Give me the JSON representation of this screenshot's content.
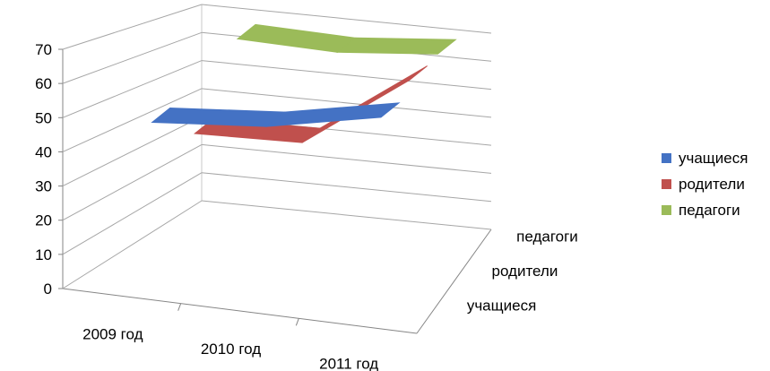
{
  "chart_data": {
    "type": "line",
    "subtype": "3d-line",
    "categories": [
      "2009 год",
      "2010 год",
      "2011 год"
    ],
    "y_ticks": [
      "0",
      "10",
      "20",
      "30",
      "40",
      "50",
      "60",
      "70"
    ],
    "ylim": [
      0,
      70
    ],
    "grid": true,
    "legend_position": "right",
    "depth_labels": [
      "учащиеся",
      "родители",
      "педагоги"
    ],
    "series": [
      {
        "name": "учащиеся",
        "color": "#4472C4",
        "values": [
          50,
          53,
          60
        ]
      },
      {
        "name": "родители",
        "color": "#C0504D",
        "values": [
          40,
          41,
          65
        ]
      },
      {
        "name": "педагоги",
        "color": "#9BBB59",
        "values": [
          65,
          64,
          67
        ]
      }
    ]
  }
}
